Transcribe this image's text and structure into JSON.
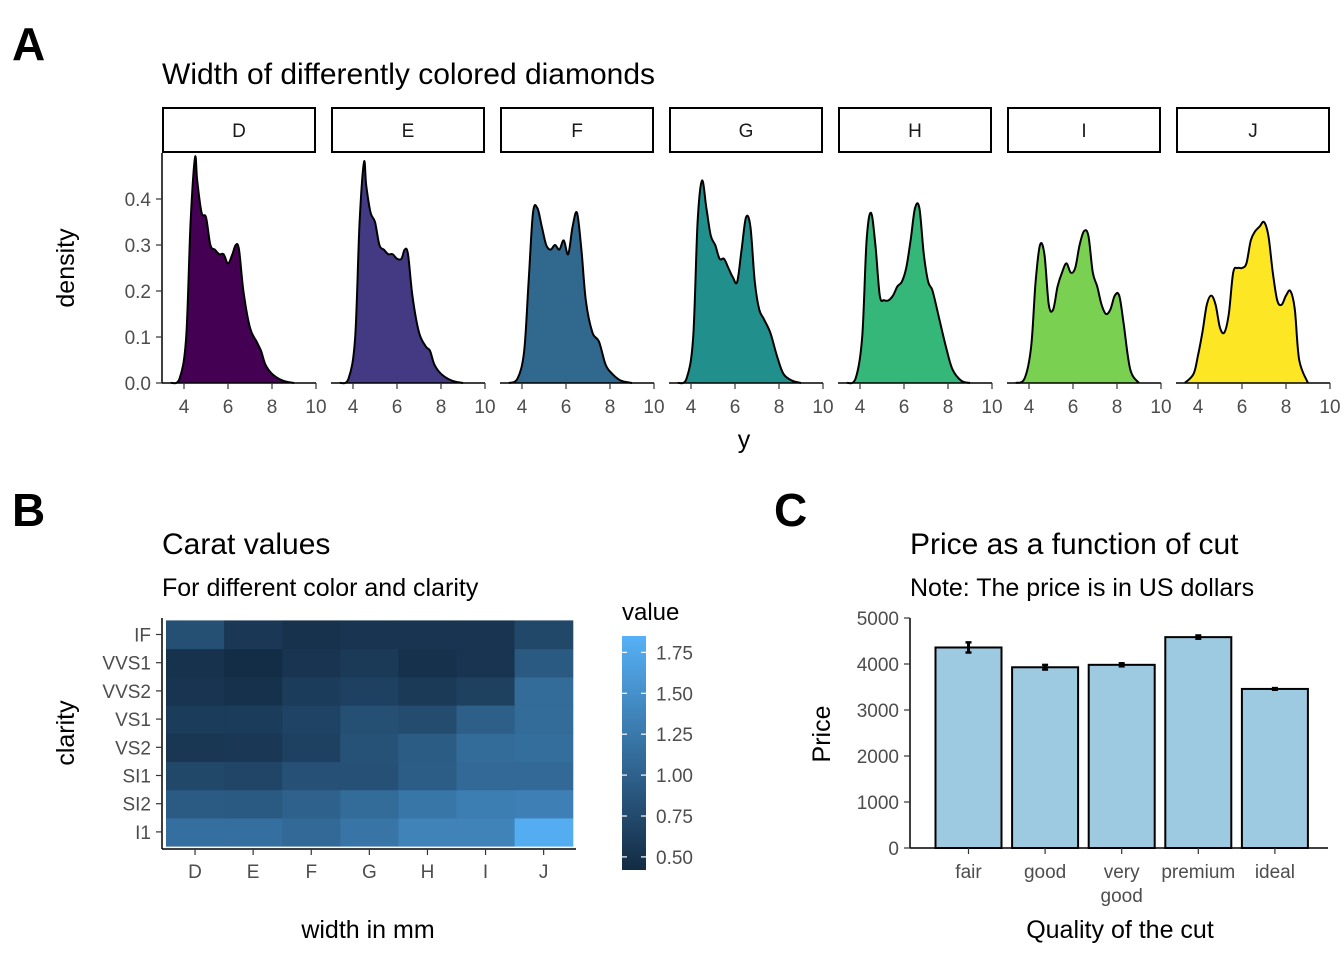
{
  "panel_tags": [
    "A",
    "B",
    "C"
  ],
  "chart_data": [
    {
      "type": "area",
      "panel": "A",
      "title": "Width of differently colored diamonds",
      "xlabel": "y",
      "ylabel": "density",
      "xlim": [
        3,
        10
      ],
      "ylim": [
        0,
        0.5
      ],
      "xticks": [
        4,
        6,
        8,
        10
      ],
      "yticks": [
        0.0,
        0.1,
        0.2,
        0.3,
        0.4
      ],
      "ytick_labels": [
        "0.0",
        "0.1",
        "0.2",
        "0.3",
        "0.4"
      ],
      "facets": [
        "D",
        "E",
        "F",
        "G",
        "H",
        "I",
        "J"
      ],
      "series": [
        {
          "name": "D",
          "color": "#440154",
          "x": [
            3.4,
            3.8,
            4.1,
            4.3,
            4.5,
            4.6,
            4.8,
            5.0,
            5.2,
            5.4,
            5.6,
            5.8,
            6.0,
            6.2,
            6.35,
            6.5,
            6.7,
            7.0,
            7.3,
            7.5,
            7.7,
            8.0,
            8.5,
            9.0
          ],
          "y": [
            0,
            0.01,
            0.1,
            0.35,
            0.49,
            0.44,
            0.37,
            0.36,
            0.3,
            0.29,
            0.28,
            0.28,
            0.26,
            0.28,
            0.3,
            0.29,
            0.2,
            0.12,
            0.09,
            0.07,
            0.04,
            0.02,
            0.005,
            0
          ]
        },
        {
          "name": "E",
          "color": "#443A83",
          "x": [
            3.4,
            3.8,
            4.1,
            4.3,
            4.5,
            4.6,
            4.8,
            5.0,
            5.2,
            5.4,
            5.6,
            5.8,
            6.0,
            6.2,
            6.35,
            6.5,
            6.7,
            7.0,
            7.3,
            7.5,
            7.7,
            8.0,
            8.5,
            9.0
          ],
          "y": [
            0,
            0.01,
            0.1,
            0.35,
            0.48,
            0.43,
            0.37,
            0.35,
            0.3,
            0.29,
            0.28,
            0.28,
            0.27,
            0.27,
            0.29,
            0.28,
            0.19,
            0.11,
            0.08,
            0.07,
            0.04,
            0.02,
            0.005,
            0
          ]
        },
        {
          "name": "F",
          "color": "#31688E",
          "x": [
            3.4,
            3.8,
            4.1,
            4.3,
            4.5,
            4.7,
            4.9,
            5.1,
            5.3,
            5.5,
            5.7,
            5.9,
            6.1,
            6.3,
            6.5,
            6.7,
            6.9,
            7.2,
            7.5,
            7.8,
            8.1,
            8.5,
            9.0
          ],
          "y": [
            0,
            0.01,
            0.07,
            0.22,
            0.37,
            0.38,
            0.34,
            0.3,
            0.29,
            0.3,
            0.29,
            0.31,
            0.28,
            0.34,
            0.37,
            0.29,
            0.18,
            0.11,
            0.09,
            0.04,
            0.02,
            0.005,
            0
          ]
        },
        {
          "name": "G",
          "color": "#21908C",
          "x": [
            3.4,
            3.8,
            4.1,
            4.3,
            4.5,
            4.7,
            4.9,
            5.1,
            5.3,
            5.5,
            5.7,
            5.9,
            6.1,
            6.3,
            6.5,
            6.7,
            6.9,
            7.1,
            7.3,
            7.6,
            7.9,
            8.2,
            8.6,
            9.0
          ],
          "y": [
            0,
            0.01,
            0.1,
            0.35,
            0.44,
            0.38,
            0.32,
            0.3,
            0.27,
            0.27,
            0.25,
            0.23,
            0.22,
            0.29,
            0.36,
            0.34,
            0.22,
            0.16,
            0.14,
            0.11,
            0.06,
            0.02,
            0.005,
            0
          ]
        },
        {
          "name": "H",
          "color": "#35B779",
          "x": [
            3.4,
            3.8,
            4.1,
            4.3,
            4.5,
            4.7,
            4.9,
            5.1,
            5.3,
            5.5,
            5.7,
            5.9,
            6.1,
            6.3,
            6.5,
            6.7,
            6.9,
            7.1,
            7.3,
            7.6,
            7.9,
            8.2,
            8.6,
            9.0
          ],
          "y": [
            0,
            0.01,
            0.1,
            0.31,
            0.37,
            0.3,
            0.19,
            0.18,
            0.18,
            0.19,
            0.21,
            0.22,
            0.25,
            0.31,
            0.38,
            0.38,
            0.28,
            0.22,
            0.2,
            0.14,
            0.08,
            0.03,
            0.005,
            0
          ]
        },
        {
          "name": "I",
          "color": "#7AD151",
          "x": [
            3.4,
            3.8,
            4.1,
            4.3,
            4.5,
            4.7,
            4.9,
            5.1,
            5.3,
            5.5,
            5.7,
            5.9,
            6.1,
            6.3,
            6.5,
            6.7,
            6.9,
            7.1,
            7.3,
            7.5,
            7.7,
            7.9,
            8.1,
            8.3,
            8.6,
            9.0
          ],
          "y": [
            0,
            0.01,
            0.08,
            0.22,
            0.3,
            0.28,
            0.17,
            0.16,
            0.21,
            0.24,
            0.26,
            0.24,
            0.25,
            0.3,
            0.33,
            0.32,
            0.24,
            0.21,
            0.17,
            0.15,
            0.16,
            0.19,
            0.19,
            0.13,
            0.03,
            0
          ]
        },
        {
          "name": "J",
          "color": "#FDE725",
          "x": [
            3.4,
            3.8,
            4.0,
            4.2,
            4.4,
            4.6,
            4.8,
            5.0,
            5.2,
            5.4,
            5.6,
            5.8,
            6.0,
            6.2,
            6.4,
            6.6,
            6.8,
            7.0,
            7.2,
            7.4,
            7.6,
            7.8,
            8.0,
            8.2,
            8.4,
            8.6,
            9.0
          ],
          "y": [
            0,
            0.02,
            0.06,
            0.11,
            0.17,
            0.19,
            0.17,
            0.12,
            0.11,
            0.15,
            0.24,
            0.25,
            0.25,
            0.26,
            0.31,
            0.33,
            0.34,
            0.35,
            0.32,
            0.24,
            0.18,
            0.17,
            0.19,
            0.2,
            0.16,
            0.05,
            0
          ]
        }
      ]
    },
    {
      "type": "heatmap",
      "panel": "B",
      "title": "Carat values",
      "subtitle": "For different color and clarity",
      "xlabel": "width in mm",
      "ylabel": "clarity",
      "x_categories": [
        "D",
        "E",
        "F",
        "G",
        "H",
        "I",
        "J"
      ],
      "y_categories": [
        "I1",
        "SI2",
        "SI1",
        "VS2",
        "VS1",
        "VVS2",
        "VVS1",
        "IF"
      ],
      "values": [
        [
          1.15,
          1.15,
          1.08,
          1.2,
          1.36,
          1.36,
          1.8
        ],
        [
          0.93,
          0.92,
          1.0,
          1.1,
          1.22,
          1.3,
          1.33
        ],
        [
          0.72,
          0.7,
          0.82,
          0.82,
          0.95,
          1.08,
          1.08
        ],
        [
          0.55,
          0.56,
          0.66,
          0.84,
          0.94,
          1.1,
          1.13
        ],
        [
          0.6,
          0.6,
          0.68,
          0.8,
          0.77,
          0.97,
          1.1
        ],
        [
          0.52,
          0.48,
          0.6,
          0.66,
          0.58,
          0.65,
          1.1
        ],
        [
          0.5,
          0.44,
          0.52,
          0.58,
          0.48,
          0.52,
          0.92
        ],
        [
          0.8,
          0.56,
          0.5,
          0.52,
          0.52,
          0.52,
          0.72
        ]
      ],
      "legend": {
        "title": "value",
        "range": [
          0.42,
          1.85
        ],
        "ticks": [
          0.5,
          0.75,
          1.0,
          1.25,
          1.5,
          1.75
        ],
        "tick_labels": [
          "0.50",
          "0.75",
          "1.00",
          "1.25",
          "1.50",
          "1.75"
        ],
        "colors": [
          "#132B43",
          "#56B1F7"
        ]
      }
    },
    {
      "type": "bar",
      "panel": "C",
      "title": "Price as a function of cut",
      "subtitle": "Note: The price is in US dollars",
      "xlabel": "Quality of the cut",
      "ylabel": "Price",
      "categories": [
        "fair",
        "good",
        "very good",
        "premium",
        "ideal"
      ],
      "category_lines": [
        [
          "fair"
        ],
        [
          "good"
        ],
        [
          "very",
          "good"
        ],
        [
          "premium"
        ],
        [
          "ideal"
        ]
      ],
      "values": [
        4359,
        3929,
        3982,
        4584,
        3458
      ],
      "error_low": [
        4250,
        3880,
        3950,
        4550,
        3440
      ],
      "error_high": [
        4470,
        3980,
        4015,
        4620,
        3476
      ],
      "ylim": [
        0,
        5000
      ],
      "yticks": [
        0,
        1000,
        2000,
        3000,
        4000,
        5000
      ],
      "ytick_labels": [
        "0",
        "1000",
        "2000",
        "3000",
        "4000",
        "5000"
      ],
      "bar_color": "#9ECAE1"
    }
  ]
}
